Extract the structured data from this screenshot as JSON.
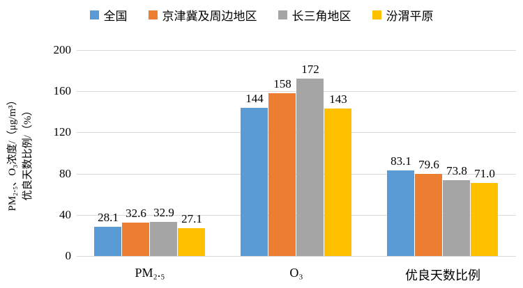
{
  "chart_data": {
    "type": "bar",
    "title": "",
    "categories": [
      "PM₂.₅",
      "O₃",
      "优良天数比例"
    ],
    "series": [
      {
        "name": "全国",
        "color": "#5B9BD5",
        "values": [
          28.1,
          144,
          83.1
        ],
        "labels": [
          "28.1",
          "144",
          "83.1"
        ]
      },
      {
        "name": "京津冀及周边地区",
        "color": "#ED7D31",
        "values": [
          32.6,
          158,
          79.6
        ],
        "labels": [
          "32.6",
          "158",
          "79.6"
        ]
      },
      {
        "name": "长三角地区",
        "color": "#A5A5A5",
        "values": [
          32.9,
          172,
          73.8
        ],
        "labels": [
          "32.9",
          "172",
          "73.8"
        ]
      },
      {
        "name": "汾渭平原",
        "color": "#FFC000",
        "values": [
          27.1,
          143,
          71.0
        ],
        "labels": [
          "27.1",
          "143",
          "71.0"
        ]
      }
    ],
    "xlabel": "",
    "ylabel_line1": "PM₂.₅、O₃浓度/（μg/m³）",
    "ylabel_line2": "优良天数比例/（%）",
    "ylim": [
      0,
      200
    ],
    "yticks": [
      0,
      40,
      80,
      120,
      160,
      200
    ],
    "grid": true,
    "gridline_color": "#D9D9D9",
    "legend_position": "top",
    "background_color": "#FFFFFF",
    "data_label_position": "above-bar"
  }
}
